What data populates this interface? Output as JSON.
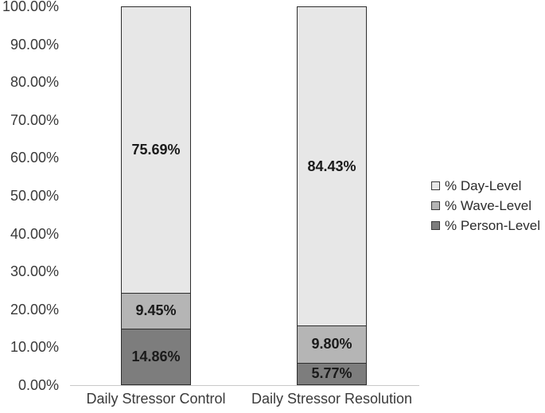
{
  "chart_data": {
    "type": "bar",
    "stacked": true,
    "title": "",
    "categories": [
      "Daily Stressor Control",
      "Daily Stressor Resolution"
    ],
    "series": [
      {
        "name": "% Person-Level",
        "color": "#7d7d7d",
        "values": [
          14.86,
          5.77
        ]
      },
      {
        "name": "% Wave-Level",
        "color": "#b5b5b5",
        "values": [
          9.45,
          9.8
        ]
      },
      {
        "name": "% Day-Level",
        "color": "#e7e7e7",
        "values": [
          75.69,
          84.43
        ]
      }
    ],
    "value_label_format": "0.00%",
    "y_axis": {
      "min": 0,
      "max": 100,
      "step": 10,
      "tick_labels": [
        "0.00%",
        "10.00%",
        "20.00%",
        "30.00%",
        "40.00%",
        "50.00%",
        "60.00%",
        "70.00%",
        "80.00%",
        "90.00%",
        "100.00%"
      ]
    },
    "grid": false,
    "legend": {
      "position": "right",
      "entries": [
        {
          "label": "% Day-Level",
          "color": "#e7e7e7"
        },
        {
          "label": "% Wave-Level",
          "color": "#b5b5b5"
        },
        {
          "label": "% Person-Level",
          "color": "#7d7d7d"
        }
      ]
    },
    "colors": {
      "segment_border": "#2e2e2e",
      "axis_line": "#c9c9c9",
      "tick_text": "#3a3a3a",
      "value_text": "#1a1a1a",
      "background": "#ffffff"
    }
  }
}
